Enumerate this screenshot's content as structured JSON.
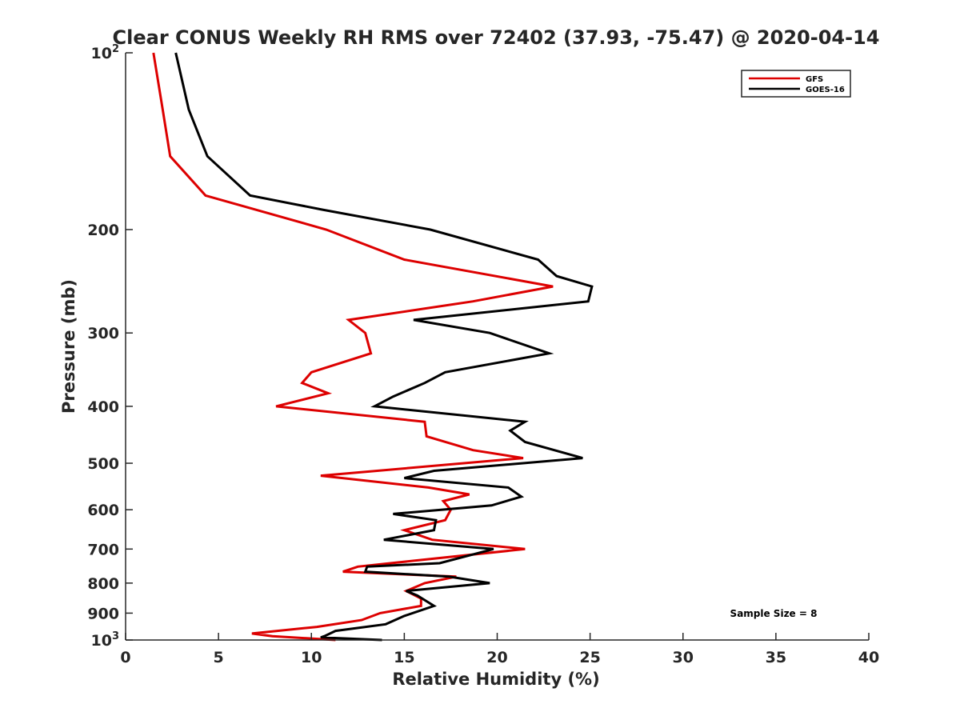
{
  "chart_data": {
    "type": "line",
    "title": "Clear CONUS Weekly RH RMS over 72402 (37.93, -75.47) @ 2020-04-14",
    "xlabel": "Relative Humidity (%)",
    "ylabel": "Pressure (mb)",
    "xlim": [
      0,
      40
    ],
    "ylim": [
      100,
      1000
    ],
    "yscale": "log",
    "y_reversed": true,
    "x_ticks": [
      0,
      5,
      10,
      15,
      20,
      25,
      30,
      35,
      40
    ],
    "x_tick_labels": [
      "0",
      "5",
      "10",
      "15",
      "20",
      "25",
      "30",
      "35",
      "40"
    ],
    "y_ticks": [
      100,
      200,
      300,
      400,
      500,
      600,
      700,
      800,
      900,
      1000
    ],
    "y_tick_labels": [
      {
        "base": "10",
        "exp": "2"
      },
      {
        "base": "200"
      },
      {
        "base": "300"
      },
      {
        "base": "400"
      },
      {
        "base": "500"
      },
      {
        "base": "600"
      },
      {
        "base": "700"
      },
      {
        "base": "800"
      },
      {
        "base": "900"
      },
      {
        "base": "10",
        "exp": "3"
      }
    ],
    "grid": false,
    "legend_position": "top-right",
    "annotation": "Sample Size = 8",
    "series": [
      {
        "name": "GFS",
        "color": "#dd0000",
        "points": [
          [
            1.5,
            100
          ],
          [
            2.0,
            125
          ],
          [
            2.4,
            150
          ],
          [
            4.3,
            175
          ],
          [
            10.8,
            200
          ],
          [
            15.0,
            225
          ],
          [
            23.0,
            250
          ],
          [
            18.7,
            265
          ],
          [
            12.0,
            285
          ],
          [
            12.9,
            300
          ],
          [
            13.2,
            325
          ],
          [
            10.0,
            350
          ],
          [
            9.5,
            365
          ],
          [
            10.9,
            380
          ],
          [
            8.1,
            400
          ],
          [
            16.1,
            425
          ],
          [
            16.2,
            450
          ],
          [
            18.7,
            475
          ],
          [
            21.4,
            490
          ],
          [
            10.5,
            525
          ],
          [
            16.3,
            550
          ],
          [
            18.5,
            565
          ],
          [
            17.1,
            580
          ],
          [
            17.5,
            600
          ],
          [
            17.2,
            625
          ],
          [
            15.0,
            650
          ],
          [
            16.5,
            675
          ],
          [
            21.5,
            700
          ],
          [
            12.5,
            750
          ],
          [
            11.7,
            765
          ],
          [
            17.8,
            780
          ],
          [
            16.1,
            800
          ],
          [
            15.1,
            825
          ],
          [
            15.9,
            850
          ],
          [
            15.9,
            875
          ],
          [
            13.7,
            900
          ],
          [
            12.7,
            925
          ],
          [
            10.3,
            950
          ],
          [
            6.8,
            975
          ],
          [
            7.9,
            985
          ],
          [
            11.3,
            1000
          ]
        ]
      },
      {
        "name": "GOES-16",
        "color": "#000000",
        "points": [
          [
            2.7,
            100
          ],
          [
            3.4,
            125
          ],
          [
            4.4,
            150
          ],
          [
            6.7,
            175
          ],
          [
            10.6,
            185
          ],
          [
            16.4,
            200
          ],
          [
            22.2,
            225
          ],
          [
            23.2,
            240
          ],
          [
            25.1,
            250
          ],
          [
            24.9,
            265
          ],
          [
            15.5,
            285
          ],
          [
            19.6,
            300
          ],
          [
            22.8,
            325
          ],
          [
            17.2,
            350
          ],
          [
            16.1,
            365
          ],
          [
            14.4,
            385
          ],
          [
            13.4,
            400
          ],
          [
            21.5,
            425
          ],
          [
            20.7,
            440
          ],
          [
            21.5,
            460
          ],
          [
            24.6,
            490
          ],
          [
            16.6,
            515
          ],
          [
            15.0,
            530
          ],
          [
            20.6,
            550
          ],
          [
            21.3,
            570
          ],
          [
            19.7,
            590
          ],
          [
            14.4,
            610
          ],
          [
            16.7,
            625
          ],
          [
            16.6,
            650
          ],
          [
            13.9,
            675
          ],
          [
            19.8,
            700
          ],
          [
            16.9,
            740
          ],
          [
            13.0,
            750
          ],
          [
            12.9,
            765
          ],
          [
            17.4,
            780
          ],
          [
            19.6,
            800
          ],
          [
            15.1,
            825
          ],
          [
            15.7,
            840
          ],
          [
            16.6,
            875
          ],
          [
            15.0,
            910
          ],
          [
            14.0,
            940
          ],
          [
            11.3,
            965
          ],
          [
            10.7,
            985
          ],
          [
            10.5,
            990
          ],
          [
            13.8,
            1000
          ]
        ]
      }
    ]
  }
}
